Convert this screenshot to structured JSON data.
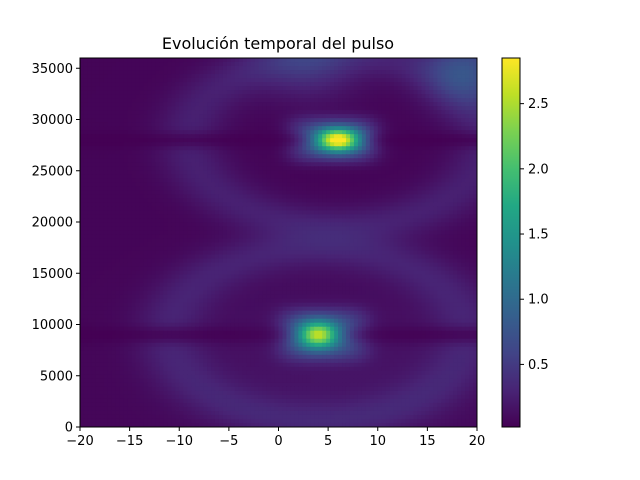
{
  "chart_data": {
    "type": "heatmap",
    "title": "Evolución temporal del pulso",
    "xlabel": "",
    "ylabel": "",
    "xlim": [
      -20,
      20
    ],
    "ylim": [
      0,
      36000
    ],
    "x_ticks": [
      -20,
      -15,
      -10,
      -5,
      0,
      5,
      10,
      15,
      20
    ],
    "x_tick_labels": [
      "−20",
      "−15",
      "−10",
      "−5",
      "0",
      "5",
      "10",
      "15",
      "20"
    ],
    "y_ticks": [
      0,
      5000,
      10000,
      15000,
      20000,
      25000,
      30000,
      35000
    ],
    "y_tick_labels": [
      "0",
      "5000",
      "10000",
      "15000",
      "20000",
      "25000",
      "30000",
      "35000"
    ],
    "colorbar": {
      "colormap": "viridis",
      "range": [
        0.02,
        2.85
      ],
      "ticks": [
        0.5,
        1.0,
        1.5,
        2.0,
        2.5
      ],
      "tick_labels": [
        "0.5",
        "1.0",
        "1.5",
        "2.0",
        "2.5"
      ]
    },
    "features": [
      {
        "x": 4,
        "y": 9000,
        "peak_value": 2.3
      },
      {
        "x": 6,
        "y": 28000,
        "peak_value": 2.85
      }
    ],
    "grid": false,
    "legend": "none"
  }
}
